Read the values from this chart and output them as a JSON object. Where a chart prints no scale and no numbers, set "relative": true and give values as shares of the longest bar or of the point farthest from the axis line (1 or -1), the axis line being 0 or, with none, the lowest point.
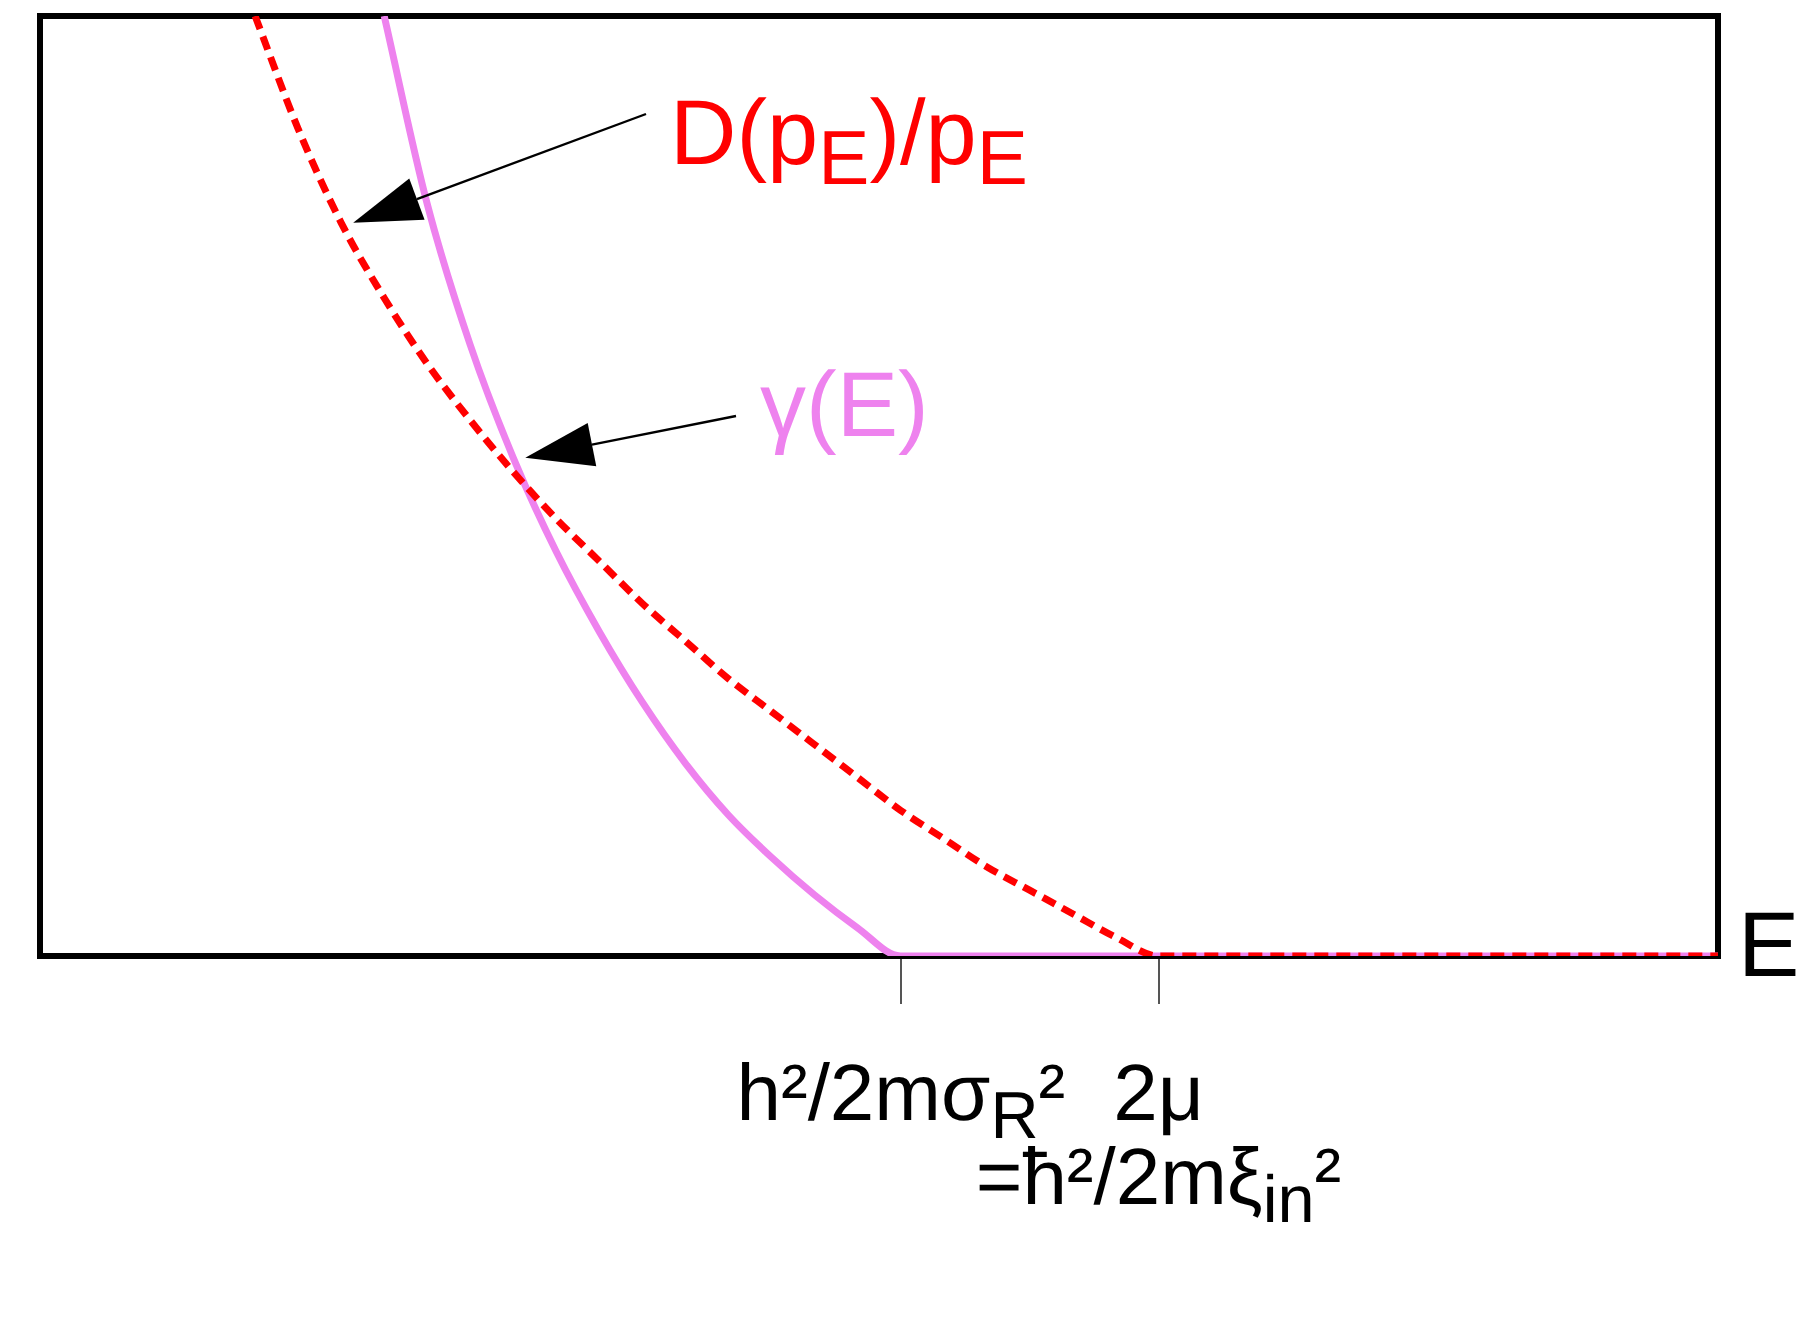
{
  "chart_data": {
    "type": "line",
    "relative": true,
    "xlabel": "E",
    "legend": false,
    "marker": "none",
    "grid": false,
    "categories": [
      null,
      null,
      null,
      null,
      null,
      null,
      null,
      null,
      null,
      null,
      null,
      null,
      null,
      null,
      null,
      null,
      null,
      null,
      null,
      null,
      "h²/2mσ$_{R}$²",
      null,
      null,
      null,
      null,
      null,
      "2μ\n=ħ²/2mξ$_{in}$²",
      null,
      null,
      null,
      null,
      null,
      null,
      null,
      null,
      null,
      null,
      null,
      null,
      null
    ],
    "series": [
      {
        "name": "D(p$_{E}$)/p$_{E}$",
        "color": "#ff0000",
        "line_style": "dashed",
        "values": [
          null,
          null,
          null,
          null,
          null,
          1.0,
          0.88,
          0.78,
          0.7,
          0.63,
          0.57,
          0.515,
          0.465,
          0.42,
          0.375,
          0.335,
          0.295,
          0.26,
          0.225,
          0.19,
          0.155,
          0.125,
          0.095,
          0.07,
          0.045,
          0.02,
          0,
          0,
          0,
          0,
          0,
          0,
          0,
          0,
          0,
          0,
          0,
          0,
          0,
          0
        ]
      },
      {
        "name": "γ(E)",
        "color": "#ee82ee",
        "line_style": "solid",
        "values": [
          null,
          null,
          null,
          null,
          null,
          null,
          null,
          null,
          1.0,
          0.8,
          0.65,
          0.53,
          0.43,
          0.345,
          0.27,
          0.205,
          0.15,
          0.105,
          0.065,
          0.03,
          0,
          0,
          0,
          0,
          0,
          0,
          0,
          0,
          0,
          0,
          0,
          0,
          0,
          0,
          0,
          0,
          0,
          0,
          0,
          0
        ]
      }
    ]
  }
}
